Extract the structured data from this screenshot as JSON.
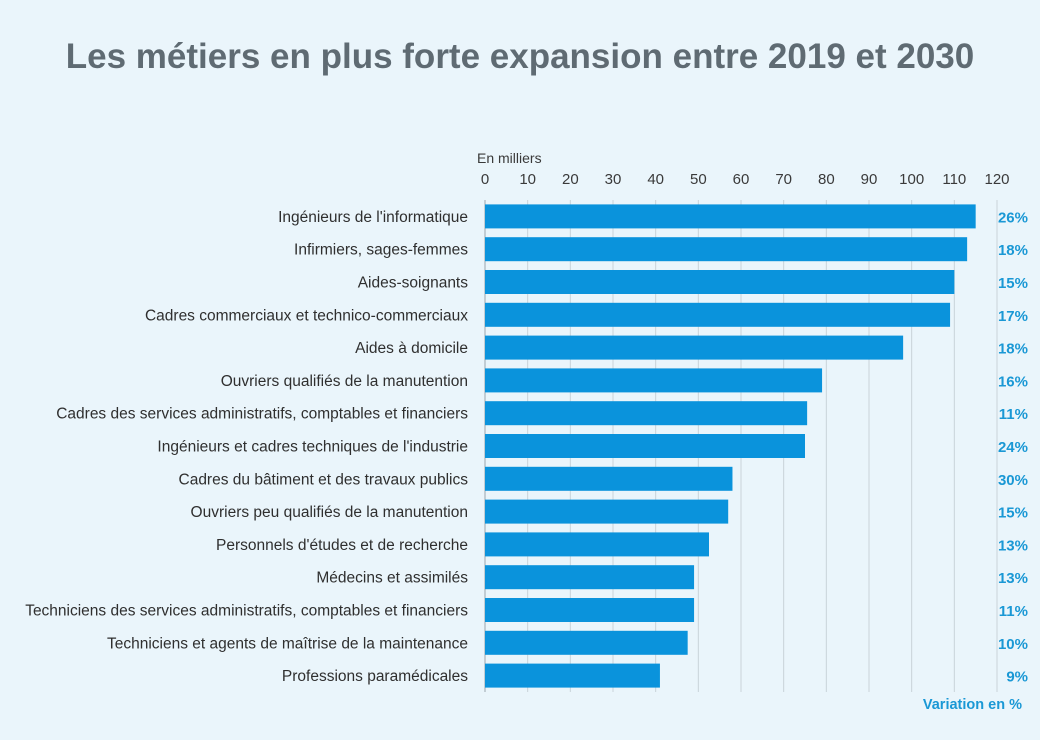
{
  "colors": {
    "background": "#eaf5fb",
    "bar": "#0a93dc",
    "title": "#5f6b73",
    "accent": "#1a98d5",
    "grid": "#c9d3d9"
  },
  "chart_data": {
    "type": "bar",
    "orientation": "horizontal",
    "title": "Les métiers en plus forte expansion entre 2019 et 2030",
    "unit_label": "En milliers",
    "secondary_label": "Variation en %",
    "xlim": [
      0,
      120
    ],
    "xticks": [
      "0",
      "10",
      "20",
      "30",
      "40",
      "50",
      "60",
      "70",
      "80",
      "90",
      "100",
      "110",
      "120"
    ],
    "grid": true,
    "categories": [
      "Ingénieurs de l'informatique",
      "Infirmiers, sages-femmes",
      "Aides-soignants",
      "Cadres commerciaux et technico-commerciaux",
      "Aides à domicile",
      "Ouvriers qualifiés de la manutention",
      "Cadres des services administratifs, comptables et financiers",
      "Ingénieurs et cadres techniques de l'industrie",
      "Cadres du bâtiment et des travaux publics",
      "Ouvriers peu qualifiés de la manutention",
      "Personnels d'études et de recherche",
      "Médecins et assimilés",
      "Techniciens des services administratifs, comptables et financiers",
      "Techniciens et agents de maîtrise de la maintenance",
      "Professions paramédicales"
    ],
    "values": [
      115,
      113,
      110,
      109,
      98,
      79,
      75.5,
      75,
      58,
      57,
      52.5,
      49,
      49,
      47.5,
      41
    ],
    "variation_pct": [
      "26%",
      "18%",
      "15%",
      "17%",
      "18%",
      "16%",
      "11%",
      "24%",
      "30%",
      "15%",
      "13%",
      "13%",
      "11%",
      "10%",
      "9%"
    ]
  }
}
